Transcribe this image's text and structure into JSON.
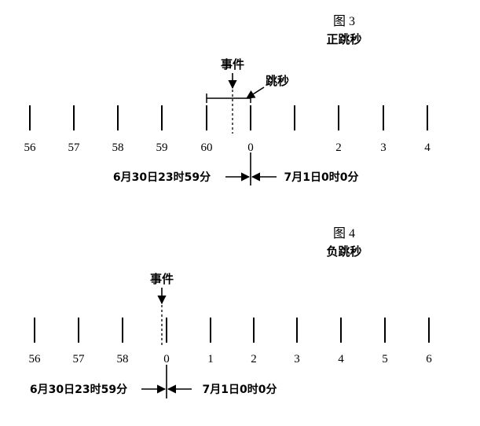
{
  "figure3": {
    "number": "图 3",
    "title": "正跳秒",
    "ticks": [
      "56",
      "57",
      "58",
      "59",
      "60",
      "0",
      "",
      "2",
      "3",
      "4"
    ],
    "event_label": "事件",
    "leap_label": "跳秒",
    "left_time": "6月30日23时59分",
    "right_time": "7月1日0时0分"
  },
  "figure4": {
    "number": "图 4",
    "title": "负跳秒",
    "ticks": [
      "56",
      "57",
      "58",
      "0",
      "1",
      "2",
      "3",
      "4",
      "5",
      "6"
    ],
    "event_label": "事件",
    "left_time": "6月30日23时59分",
    "right_time": "7月1日0时0分"
  }
}
